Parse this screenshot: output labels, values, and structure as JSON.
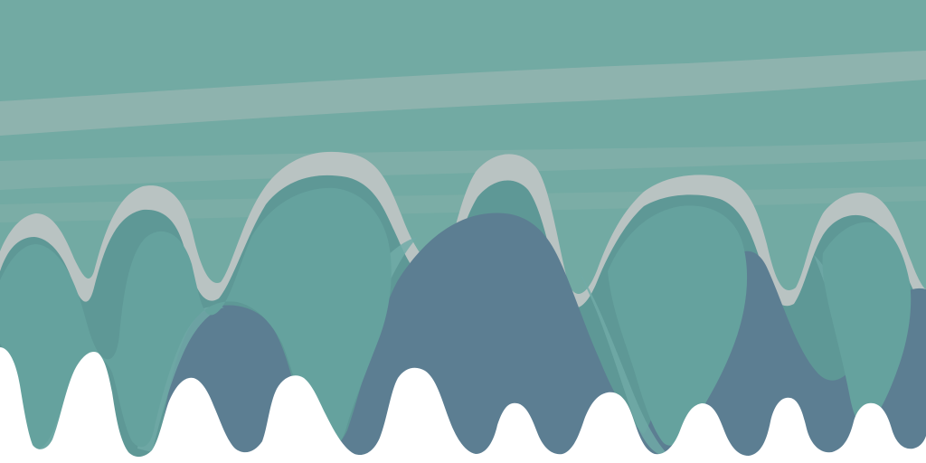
{
  "image": {
    "kind": "abstract illustration",
    "colors": {
      "sky": "#72aaa3",
      "stripe": "#98b6b1",
      "outline": "#b9c3c2",
      "teal_dark": "#5e9896",
      "teal_mid": "#65a29e",
      "teal_light": "#71aba8",
      "slate": "#5c7e92",
      "slate_light": "#6a8ba0",
      "background": "#ffffff"
    }
  }
}
